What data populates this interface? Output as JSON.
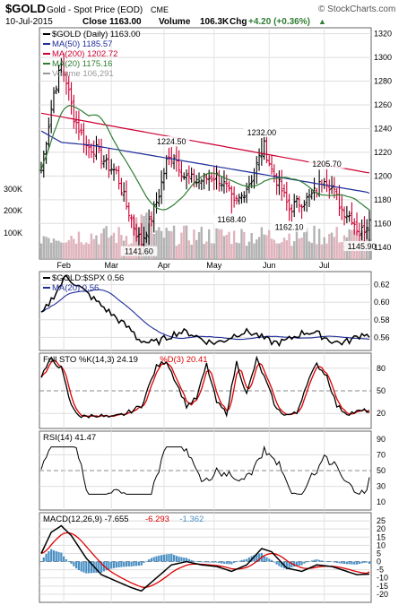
{
  "header": {
    "symbol": "$GOLD",
    "name": "Gold - Spot Price (EOD)",
    "exchange": "CME",
    "date": "10-Jul-2015",
    "close_label": "Close",
    "close_value": "1163.00",
    "volume_label": "Volume",
    "volume_value": "106.3K",
    "chg_label": "Chg",
    "chg_value": "+4.20 (+0.36%)",
    "chg_arrow": "▲",
    "watermark": "© StockCharts.com"
  },
  "colors": {
    "price_up": "#000000",
    "price_down": "#cc0033",
    "ma50": "#1f2d99",
    "ma200": "#cc0033",
    "ma20": "#2e7d32",
    "volume": "#b3b3b3",
    "ratio_ma": "#1f2d99",
    "sto_d": "#dd0000",
    "macd_signal": "#dd0000",
    "macd_hist": "#4a90c4",
    "chg_green": "#2e7d32"
  },
  "chart_data": [
    {
      "type": "ohlc",
      "panel": "price",
      "months": [
        "Feb",
        "Mar",
        "Apr",
        "May",
        "Jun",
        "Jul"
      ],
      "ylim": [
        1130,
        1325
      ],
      "y_ticks": [
        1320,
        1300,
        1280,
        1260,
        1240,
        1220,
        1200,
        1180,
        1160,
        1140
      ],
      "volume_ticks": [
        "300K",
        "200K",
        "100K"
      ],
      "legend": [
        {
          "label": "$GOLD (Daily) 1163.00",
          "color": "#000000"
        },
        {
          "label": "MA(50) 1185.57",
          "color": "#1f2d99"
        },
        {
          "label": "MA(200) 1202.72",
          "color": "#cc0033"
        },
        {
          "label": "MA(20) 1175.16",
          "color": "#2e7d32"
        },
        {
          "label": "Volume 106,291",
          "color": "#999999"
        }
      ],
      "annotations": [
        {
          "text": "1224.50",
          "value": 1224.5,
          "day": 52
        },
        {
          "text": "1232.00",
          "value": 1232.0,
          "day": 88
        },
        {
          "text": "1205.70",
          "value": 1205.7,
          "day": 114
        },
        {
          "text": "1168.40",
          "value": 1168.4,
          "day": 76
        },
        {
          "text": "1162.10",
          "value": 1162.1,
          "day": 99
        },
        {
          "text": "1141.60",
          "value": 1141.6,
          "day": 39
        },
        {
          "text": "1145.90",
          "value": 1145.9,
          "day": 128
        }
      ]
    },
    {
      "type": "line",
      "panel": "ratio",
      "legend": [
        {
          "label": "$GOLD:$SPX 0.56",
          "color": "#000000"
        },
        {
          "label": "MA(20) 0.56",
          "color": "#1f2d99"
        }
      ],
      "ylim": [
        0.545,
        0.635
      ],
      "y_ticks": [
        0.62,
        0.6,
        0.58,
        0.56
      ]
    },
    {
      "type": "line",
      "panel": "stochastic",
      "legend": [
        {
          "label": "Full STO %K(14,3) 24.19",
          "color": "#000000"
        },
        {
          "label": "%D(3) 20.41",
          "color": "#dd0000"
        }
      ],
      "ylim": [
        0,
        100
      ],
      "y_ticks": [
        80,
        50,
        20
      ]
    },
    {
      "type": "line",
      "panel": "rsi",
      "legend": [
        {
          "label": "RSI(14) 41.47",
          "color": "#000000"
        }
      ],
      "ylim": [
        0,
        100
      ],
      "y_ticks": [
        90,
        70,
        50,
        30,
        10
      ]
    },
    {
      "type": "line",
      "panel": "macd",
      "legend": [
        {
          "label": "MACD(12,26,9) -7.655",
          "color": "#000000"
        },
        {
          "label": "-6.293",
          "color": "#dd0000"
        },
        {
          "label": "-1.362",
          "color": "#4a90c4"
        }
      ],
      "ylim": [
        -25,
        30
      ],
      "y_ticks": [
        25,
        20,
        15,
        10,
        5,
        0,
        -5,
        -10,
        -15,
        -20
      ]
    }
  ]
}
